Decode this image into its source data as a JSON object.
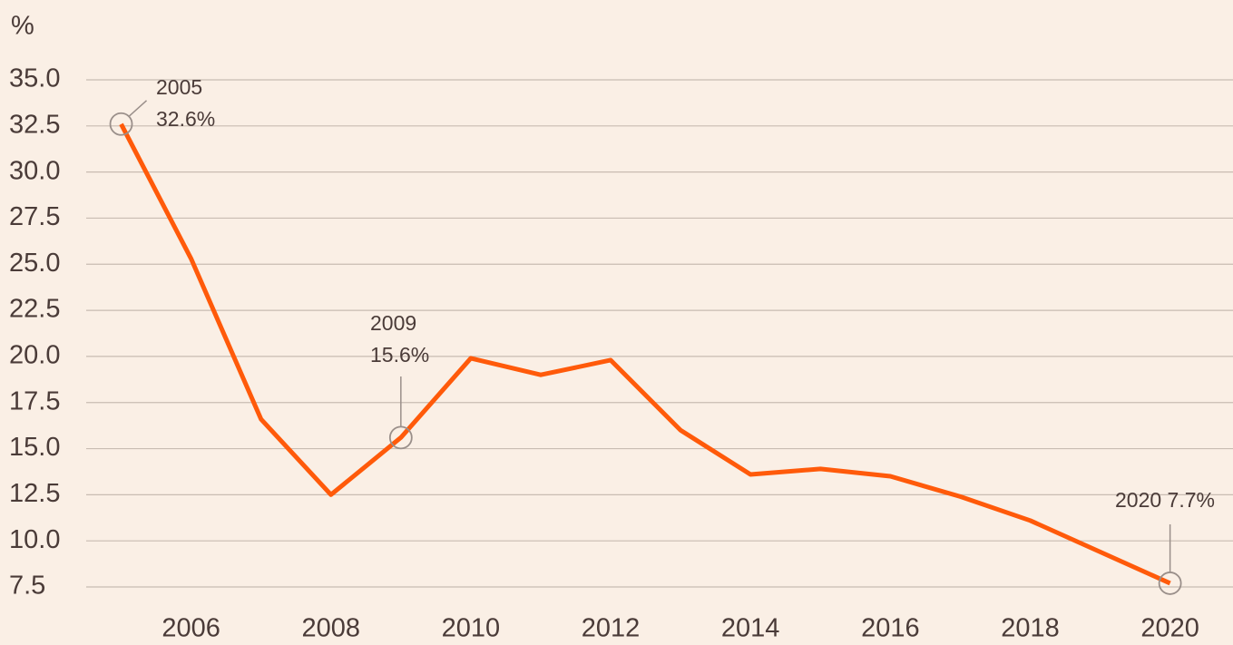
{
  "chart_data": {
    "type": "line",
    "y_unit": "%",
    "x": [
      2005,
      2006,
      2007,
      2008,
      2009,
      2010,
      2011,
      2012,
      2013,
      2014,
      2015,
      2016,
      2017,
      2018,
      2019,
      2020
    ],
    "series": [
      {
        "color": "#ff5a0a",
        "values": [
          32.6,
          25.3,
          16.6,
          12.5,
          15.6,
          19.9,
          19.0,
          19.8,
          16.0,
          13.6,
          13.9,
          13.5,
          12.4,
          11.1,
          9.4,
          7.7
        ]
      }
    ],
    "xlim": [
      2004.5,
      2020.9
    ],
    "xticks": [
      2006,
      2008,
      2010,
      2012,
      2014,
      2016,
      2018,
      2020
    ],
    "ylim": [
      7.5,
      35
    ],
    "yticks": [
      {
        "value": 35,
        "label": "35.0"
      },
      32.5,
      {
        "value": 30,
        "label": "30.0"
      },
      27.5,
      {
        "value": 25,
        "label": "25.0"
      },
      22.5,
      {
        "value": 20,
        "label": "20.0"
      },
      17.5,
      {
        "value": 15,
        "label": "15.0"
      },
      12.5,
      {
        "value": 10,
        "label": "10.0"
      },
      7.5
    ],
    "grid": true,
    "annotations": [
      {
        "point": 0,
        "lines": [
          "2005",
          "32.6%"
        ]
      },
      {
        "point": 4,
        "lines": [
          "2009",
          "15.6%"
        ]
      },
      {
        "point": 15,
        "lines": [
          "2020 7.7%"
        ]
      }
    ]
  }
}
